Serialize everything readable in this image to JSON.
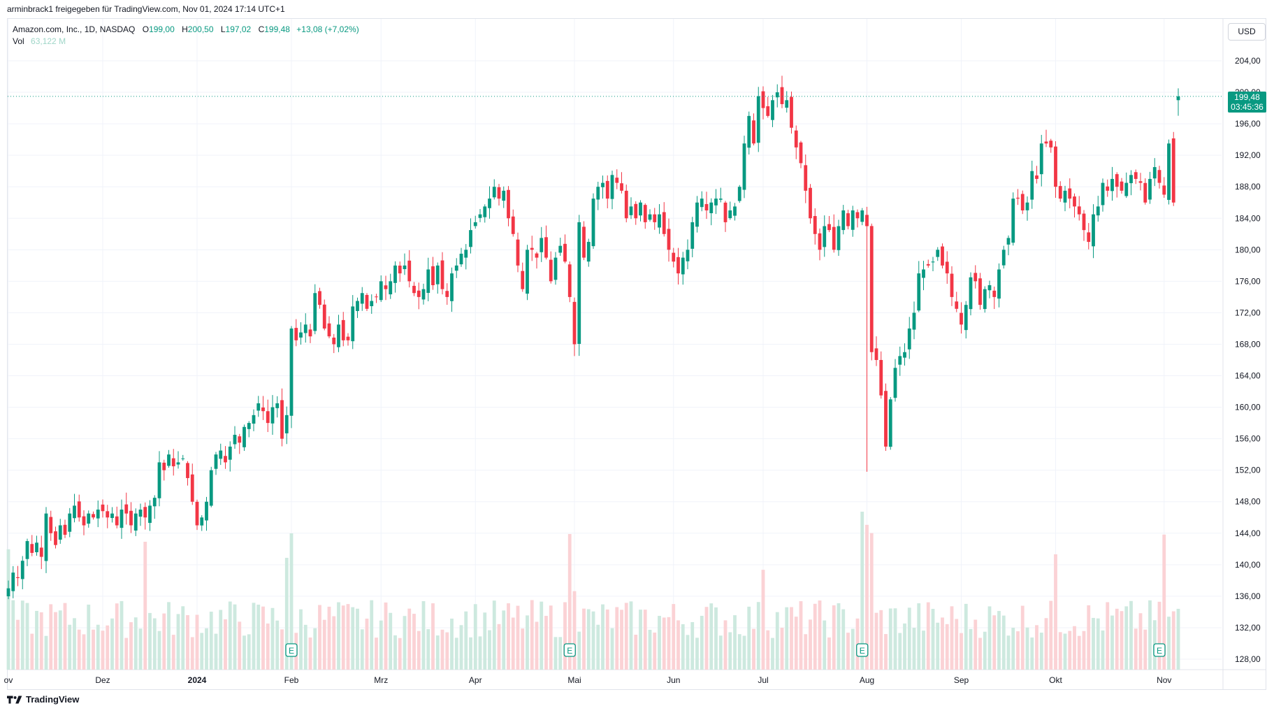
{
  "header": {
    "publisher_line": "arminbrack1 freigegeben für TradingView.com, Nov 01, 2024 17:14 UTC+1"
  },
  "legend": {
    "symbol": "Amazon.com, Inc., 1D, NASDAQ",
    "open_label": "O",
    "open": "199,00",
    "high_label": "H",
    "high": "200,50",
    "low_label": "L",
    "low": "197,02",
    "close_label": "C",
    "close": "199,48",
    "change": "+13,08 (+7,02%)",
    "volume_label": "Vol",
    "volume_value": "63,122 M"
  },
  "currency_button": "USD",
  "price_tag": {
    "price": "199,48",
    "countdown": "03:45:36"
  },
  "footer": {
    "brand": "TradingView"
  },
  "colors": {
    "up": "#089981",
    "down": "#f23645",
    "up_volume": "#cde9df",
    "down_volume": "#fbd2d5",
    "grid": "#f0f3fa",
    "last_price_line": "#089981"
  },
  "chart_data": {
    "type": "candlestick",
    "symbol": "AMZN",
    "y_ticks": [
      128,
      132,
      136,
      140,
      144,
      148,
      152,
      156,
      160,
      164,
      168,
      172,
      176,
      180,
      184,
      188,
      192,
      196,
      200,
      204
    ],
    "y_tick_labels": [
      "128,00",
      "132,00",
      "136,00",
      "140,00",
      "144,00",
      "148,00",
      "152,00",
      "156,00",
      "160,00",
      "164,00",
      "168,00",
      "172,00",
      "176,00",
      "180,00",
      "184,00",
      "188,00",
      "192,00",
      "196,00",
      "200,00",
      "204,00"
    ],
    "ylim": [
      126.5,
      206.5
    ],
    "x_labels": [
      {
        "label": "ov",
        "index": 0
      },
      {
        "label": "Dez",
        "index": 20
      },
      {
        "label": "2024",
        "index": 40
      },
      {
        "label": "Feb",
        "index": 60
      },
      {
        "label": "Mrz",
        "index": 79
      },
      {
        "label": "Apr",
        "index": 99
      },
      {
        "label": "Mai",
        "index": 120
      },
      {
        "label": "Jun",
        "index": 141
      },
      {
        "label": "Jul",
        "index": 160
      },
      {
        "label": "Aug",
        "index": 182
      },
      {
        "label": "Sep",
        "index": 202
      },
      {
        "label": "Okt",
        "index": 222
      },
      {
        "label": "Nov",
        "index": 245
      }
    ],
    "earnings_markers": [
      {
        "label": "E",
        "index": 60
      },
      {
        "label": "E",
        "index": 119
      },
      {
        "label": "E",
        "index": 181
      },
      {
        "label": "E",
        "index": 244
      }
    ],
    "last_price": 199.48,
    "closes": [
      137.0,
      139.0,
      138.3,
      140.5,
      143.0,
      141.5,
      142.8,
      141.0,
      146.5,
      144.0,
      142.5,
      145.0,
      143.8,
      146.5,
      147.5,
      146.0,
      145.0,
      146.5,
      146.0,
      147.0,
      146.8,
      146.0,
      146.5,
      145.0,
      147.0,
      146.5,
      145.0,
      146.5,
      147.0,
      146.0,
      147.5,
      148.5,
      153.0,
      152.0,
      154.0,
      152.5,
      153.0,
      153.5,
      151.0,
      148.0,
      145.0,
      146.0,
      148.0,
      152.0,
      154.0,
      154.5,
      153.0,
      155.0,
      156.5,
      155.5,
      157.5,
      158.0,
      159.0,
      160.5,
      159.5,
      158.0,
      160.0,
      160.5,
      156.0,
      159.0,
      170.0,
      168.5,
      169.5,
      170.5,
      169.0,
      174.5,
      173.0,
      170.0,
      169.0,
      168.0,
      170.5,
      168.5,
      168.5,
      172.8,
      173.5,
      174.5,
      172.5,
      173.5,
      174.0,
      176.0,
      175.0,
      176.0,
      178.0,
      177.0,
      178.0,
      176.0,
      174.5,
      174.0,
      175.0,
      177.5,
      175.5,
      178.0,
      175.0,
      174.0,
      177.0,
      178.0,
      179.5,
      180.0,
      182.5,
      183.5,
      184.5,
      185.5,
      186.5,
      188.0,
      186.5,
      187.5,
      184.0,
      182.0,
      178.0,
      175.0,
      180.0,
      180.0,
      179.0,
      181.5,
      179.0,
      176.0,
      179.0,
      180.5,
      178.5,
      174.0,
      168.0,
      183.5,
      179.0,
      181.0,
      186.5,
      188.0,
      188.5,
      186.5,
      189.5,
      188.5,
      187.5,
      184.0,
      185.5,
      184.0,
      186.0,
      183.5,
      184.5,
      183.5,
      184.5,
      182.0,
      180.0,
      178.5,
      177.0,
      179.0,
      180.0,
      183.5,
      186.0,
      186.5,
      185.0,
      186.0,
      186.5,
      186.5,
      183.5,
      185.0,
      185.5,
      188.0,
      193.5,
      197.0,
      193.5,
      199.5,
      198.0,
      197.0,
      199.0,
      200.0,
      198.5,
      199.0,
      195.5,
      193.0,
      191.0,
      187.5,
      184.0,
      182.0,
      180.0,
      183.0,
      182.5,
      180.0,
      183.0,
      185.0,
      183.0,
      185.0,
      184.0,
      185.0,
      183.0,
      167.0,
      166.0,
      161.5,
      155.0,
      161.0,
      165.0,
      166.5,
      167.0,
      170.0,
      172.0,
      177.0,
      177.5,
      178.0,
      178.5,
      180.0,
      178.0,
      177.0,
      174.0,
      172.5,
      170.5,
      173.0,
      176.5,
      176.0,
      173.0,
      175.0,
      175.5,
      174.0,
      177.5,
      180.0,
      181.5,
      186.5,
      186.5,
      185.0,
      186.0,
      190.0,
      189.0,
      193.5,
      193.5,
      193.0,
      188.0,
      186.5,
      187.5,
      186.5,
      185.5,
      184.5,
      182.5,
      181.0,
      184.5,
      185.5,
      188.5,
      187.5,
      189.0,
      188.0,
      187.5,
      188.5,
      189.5,
      189.0,
      188.5,
      186.0,
      189.0,
      190.5,
      188.5,
      187.0,
      193.5,
      186.0,
      199.48
    ],
    "last_candle": {
      "open": 199.0,
      "high": 200.5,
      "low": 197.02,
      "close": 199.48
    }
  }
}
